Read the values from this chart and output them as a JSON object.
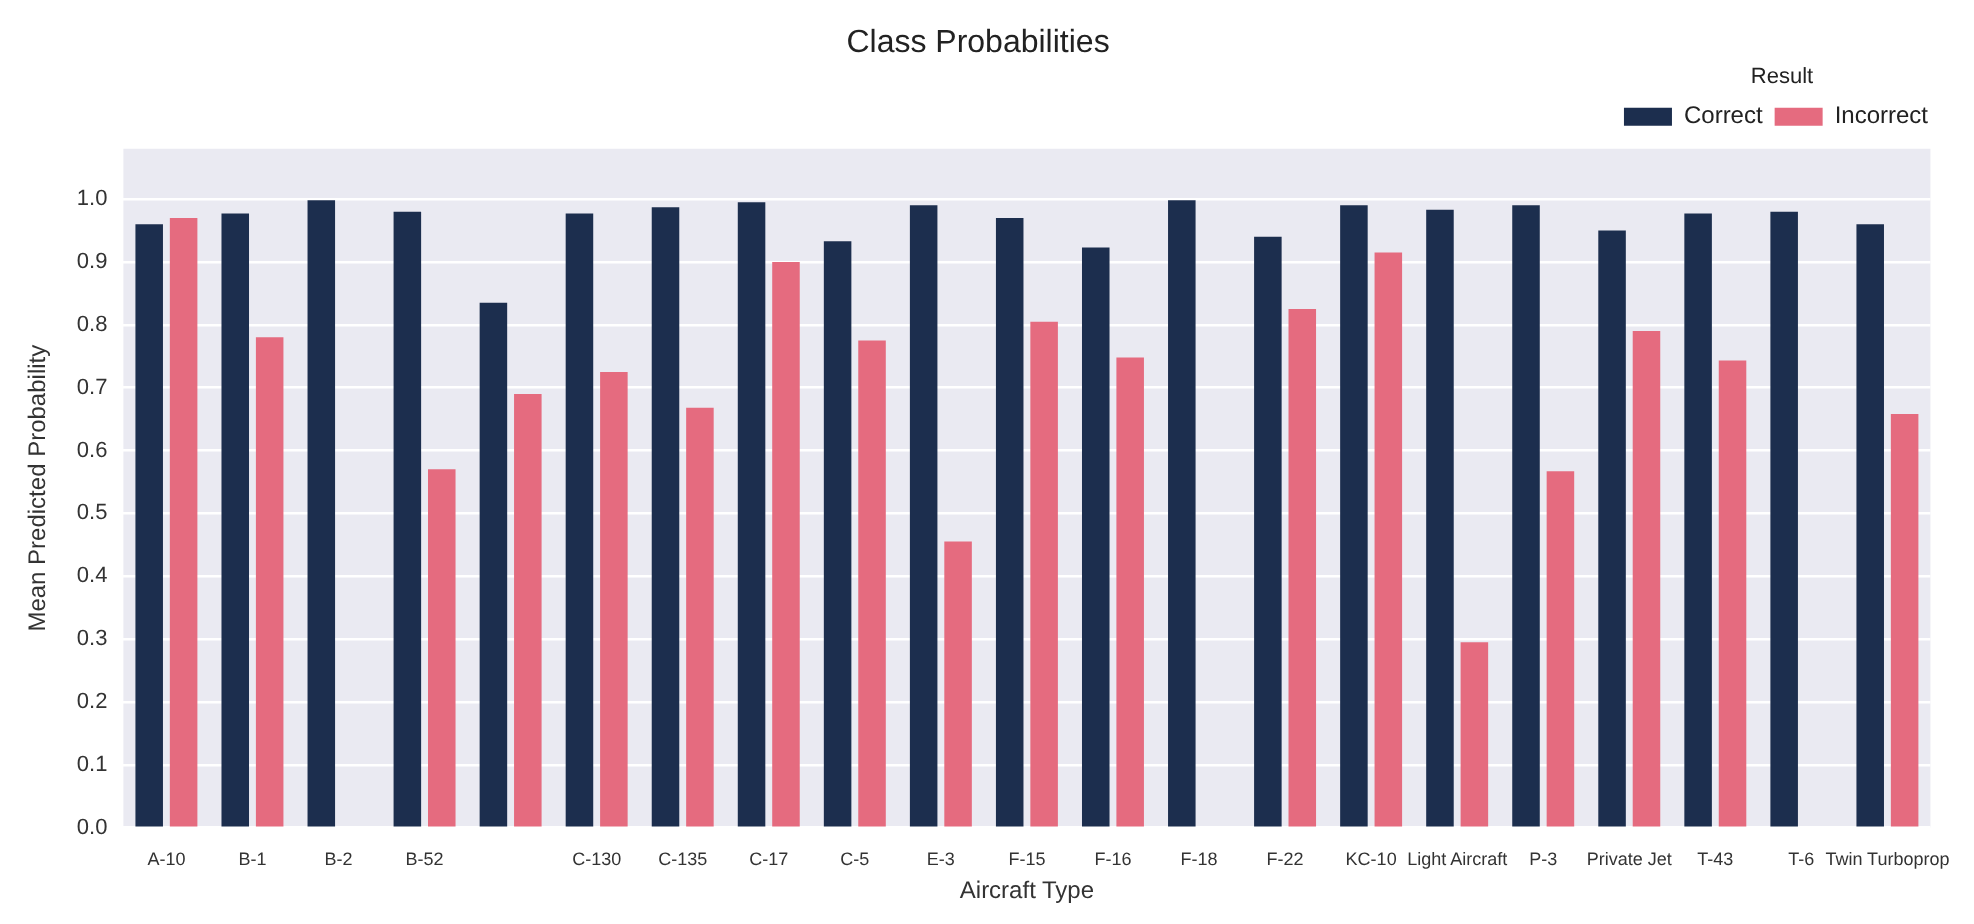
{
  "chart_data": {
    "type": "bar",
    "title": "Class Probabilities",
    "xlabel": "Aircraft Type",
    "ylabel": "Mean Predicted Probability",
    "legend_title": "Result",
    "categories": [
      "A-10",
      "B-1",
      "B-2",
      "B-52",
      null,
      "C-130",
      "C-135",
      "C-17",
      "C-5",
      "E-3",
      "F-15",
      "F-16",
      "F-18",
      "F-22",
      "KC-10",
      "Light Aircraft",
      "P-3",
      "Private Jet",
      "T-43",
      "T-6",
      "Twin Turboprop"
    ],
    "series": [
      {
        "name": "Correct",
        "color": "#1c2e4e",
        "values": [
          0.96,
          0.977,
          0.998,
          0.98,
          0.835,
          0.977,
          0.987,
          0.995,
          0.933,
          0.99,
          0.97,
          0.923,
          0.998,
          0.94,
          0.99,
          0.983,
          0.99,
          0.95,
          0.977,
          0.98,
          0.96
        ]
      },
      {
        "name": "Incorrect",
        "color": "#e56b7f",
        "values": [
          0.97,
          0.78,
          null,
          0.57,
          0.69,
          0.725,
          0.668,
          0.9,
          0.775,
          0.455,
          0.805,
          0.748,
          null,
          0.825,
          0.915,
          0.295,
          0.567,
          0.79,
          0.743,
          null,
          0.658
        ]
      }
    ],
    "ylim": [
      0,
      1.08
    ],
    "yticks": [
      {
        "value": 0,
        "label": "0.0"
      },
      0.1,
      0.2,
      0.3,
      0.4,
      0.5,
      0.6,
      0.7,
      0.8,
      0.9,
      {
        "value": 1,
        "label": "1.0"
      }
    ],
    "grid": "y",
    "legend": "top right"
  }
}
